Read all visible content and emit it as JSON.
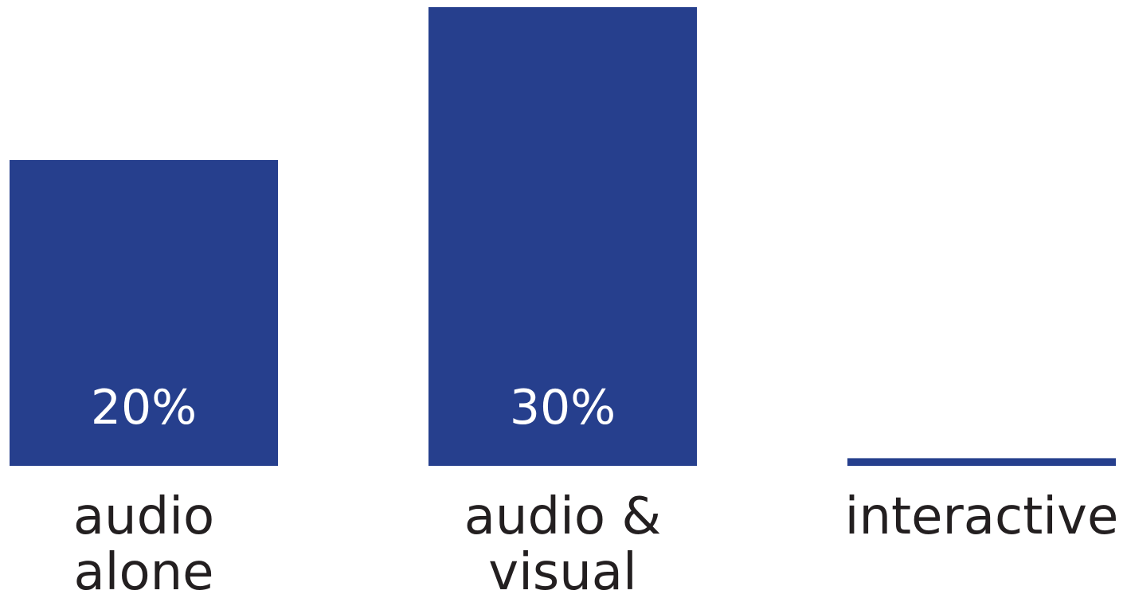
{
  "chart_data": {
    "type": "bar",
    "categories": [
      "audio alone",
      "audio & visual",
      "interactive"
    ],
    "category_lines": [
      [
        "audio",
        "alone"
      ],
      [
        "audio &",
        "visual"
      ],
      [
        "interactive"
      ]
    ],
    "values": [
      20,
      30,
      0.5
    ],
    "value_labels": [
      "20%",
      "30%",
      ""
    ],
    "ylim": [
      0,
      30
    ],
    "grid": false,
    "title": "",
    "xlabel": "",
    "ylabel": "",
    "colors": {
      "bar": "#263f8d",
      "value_text": "#ffffff",
      "label_text": "#231f20"
    }
  }
}
